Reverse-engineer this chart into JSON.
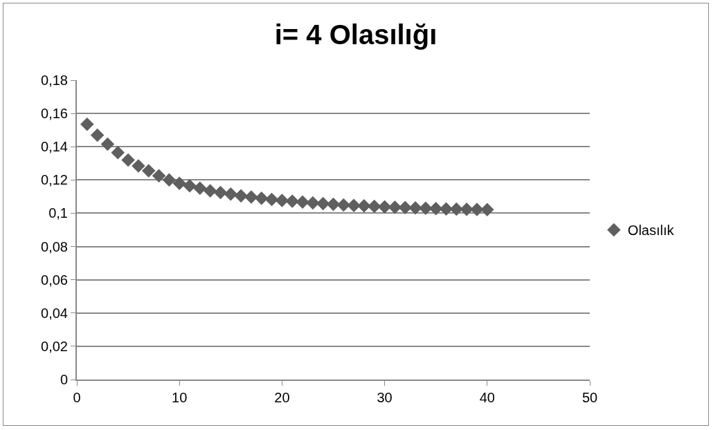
{
  "chart_data": {
    "type": "scatter",
    "title": "i= 4 Olasılığı",
    "x": [
      1,
      2,
      3,
      4,
      5,
      6,
      7,
      8,
      9,
      10,
      11,
      12,
      13,
      14,
      15,
      16,
      17,
      18,
      19,
      20,
      21,
      22,
      23,
      24,
      25,
      26,
      27,
      28,
      29,
      30,
      31,
      32,
      33,
      34,
      35,
      36,
      37,
      38,
      39,
      40
    ],
    "series": [
      {
        "name": "Olasılık",
        "color": "#5f5f5f",
        "values": [
          0.1535,
          0.147,
          0.1415,
          0.1365,
          0.132,
          0.1285,
          0.1255,
          0.1225,
          0.12,
          0.118,
          0.1165,
          0.115,
          0.1135,
          0.1125,
          0.1115,
          0.1105,
          0.1097,
          0.109,
          0.1083,
          0.1077,
          0.1072,
          0.1067,
          0.1062,
          0.1058,
          0.1054,
          0.105,
          0.1047,
          0.1044,
          0.1041,
          0.1038,
          0.1036,
          0.1034,
          0.1032,
          0.103,
          0.1028,
          0.1026,
          0.1025,
          0.1024,
          0.1023,
          0.1022
        ]
      }
    ],
    "xlim": [
      0,
      50
    ],
    "xticks": [
      0,
      10,
      20,
      30,
      40,
      50
    ],
    "ylim": [
      0,
      0.18
    ],
    "yticks": [
      {
        "value": 0,
        "label": "0"
      },
      {
        "value": 0.02,
        "label": "0,02"
      },
      {
        "value": 0.04,
        "label": "0,04"
      },
      {
        "value": 0.06,
        "label": "0,06"
      },
      {
        "value": 0.08,
        "label": "0,08"
      },
      {
        "value": 0.1,
        "label": "0,1"
      },
      {
        "value": 0.12,
        "label": "0,12"
      },
      {
        "value": 0.14,
        "label": "0,14"
      },
      {
        "value": 0.16,
        "label": "0,16"
      },
      {
        "value": 0.18,
        "label": "0,18"
      }
    ],
    "grid": "y",
    "legend": "right",
    "marker": "diamond"
  }
}
